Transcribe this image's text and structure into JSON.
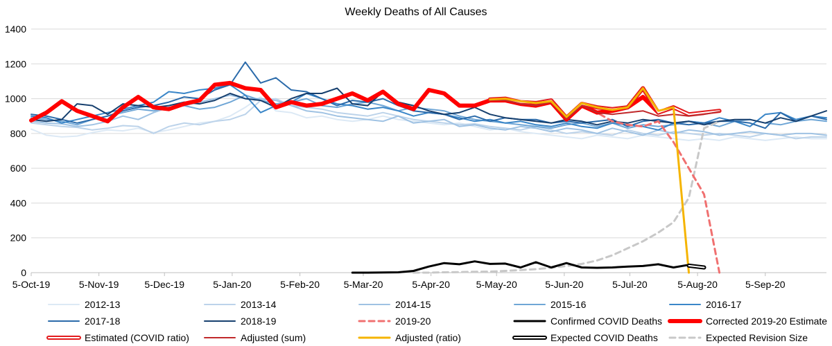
{
  "chart_data": {
    "type": "line",
    "title": "Weekly Deaths of All Causes",
    "xlabel": "",
    "ylabel": "",
    "ylim": [
      0,
      1400
    ],
    "y_ticks": [
      0,
      200,
      400,
      600,
      800,
      1000,
      1200,
      1400
    ],
    "x_unit": "day offset from 5-Oct-19",
    "xlim": [
      0,
      364
    ],
    "x_ticks": [
      {
        "label": "5-Oct-19",
        "day": 0
      },
      {
        "label": "5-Nov-19",
        "day": 31
      },
      {
        "label": "5-Dec-19",
        "day": 61
      },
      {
        "label": "5-Jan-20",
        "day": 92
      },
      {
        "label": "5-Feb-20",
        "day": 123
      },
      {
        "label": "5-Mar-20",
        "day": 152
      },
      {
        "label": "5-Apr-20",
        "day": 183
      },
      {
        "label": "5-May-20",
        "day": 213
      },
      {
        "label": "5-Jun-20",
        "day": 244
      },
      {
        "label": "5-Jul-20",
        "day": 274
      },
      {
        "label": "5-Aug-20",
        "day": 305
      },
      {
        "label": "5-Sep-20",
        "day": 336
      }
    ],
    "grid": true,
    "legend_position": "bottom",
    "week_days": [
      0,
      7,
      14,
      21,
      28,
      35,
      42,
      49,
      56,
      63,
      70,
      77,
      84,
      91,
      98,
      105,
      112,
      119,
      126,
      133,
      140,
      147,
      154,
      161,
      168,
      175,
      182,
      189,
      196,
      203,
      210,
      217,
      224,
      231,
      238,
      245,
      252,
      259,
      266,
      273,
      280,
      287,
      294,
      301,
      308,
      315,
      322,
      329,
      336,
      343,
      350,
      357,
      364
    ],
    "series": [
      {
        "name": "2012-13",
        "color": "#dce9f5",
        "width": 2,
        "dash": "",
        "start_index": 0,
        "values": [
          825,
          790,
          780,
          785,
          805,
          820,
          815,
          830,
          805,
          820,
          840,
          860,
          870,
          900,
          950,
          1010,
          930,
          920,
          890,
          900,
          880,
          870,
          880,
          900,
          880,
          870,
          860,
          850,
          860,
          840,
          820,
          830,
          810,
          800,
          790,
          780,
          770,
          790,
          780,
          770,
          790,
          780,
          770,
          760,
          770,
          760,
          780,
          770,
          760,
          770,
          780,
          770,
          770
        ]
      },
      {
        "name": "2013-14",
        "color": "#bcd3ea",
        "width": 2,
        "dash": "",
        "start_index": 0,
        "values": [
          860,
          850,
          840,
          835,
          820,
          830,
          845,
          840,
          800,
          840,
          860,
          850,
          870,
          880,
          910,
          990,
          1000,
          960,
          950,
          940,
          920,
          910,
          900,
          920,
          900,
          880,
          870,
          860,
          850,
          855,
          840,
          830,
          820,
          840,
          820,
          800,
          810,
          800,
          790,
          820,
          800,
          790,
          810,
          800,
          790,
          800,
          790,
          780,
          800,
          790,
          770,
          780,
          780
        ]
      },
      {
        "name": "2014-15",
        "color": "#9fc2e3",
        "width": 2,
        "dash": "",
        "start_index": 0,
        "values": [
          870,
          860,
          855,
          840,
          850,
          870,
          900,
          880,
          920,
          950,
          960,
          980,
          1000,
          1020,
          1000,
          1000,
          990,
          960,
          930,
          920,
          900,
          890,
          880,
          870,
          900,
          860,
          870,
          880,
          840,
          850,
          830,
          820,
          840,
          830,
          810,
          830,
          820,
          800,
          830,
          810,
          790,
          820,
          800,
          820,
          810,
          790,
          800,
          810,
          800,
          790,
          800,
          800,
          790
        ]
      },
      {
        "name": "2015-16",
        "color": "#6fa6d6",
        "width": 2,
        "dash": "",
        "start_index": 0,
        "values": [
          890,
          880,
          870,
          850,
          880,
          900,
          920,
          940,
          930,
          950,
          960,
          940,
          950,
          980,
          1020,
          990,
          970,
          980,
          1000,
          960,
          950,
          970,
          980,
          960,
          930,
          950,
          940,
          930,
          900,
          880,
          870,
          860,
          850,
          840,
          830,
          850,
          860,
          840,
          860,
          830,
          850,
          840,
          850,
          870,
          860,
          840,
          870,
          880,
          860,
          850,
          870,
          880,
          870
        ]
      },
      {
        "name": "2016-17",
        "color": "#3a86c8",
        "width": 2,
        "dash": "",
        "start_index": 0,
        "values": [
          900,
          890,
          860,
          880,
          900,
          920,
          940,
          960,
          980,
          1040,
          1030,
          1050,
          1060,
          1080,
          1020,
          920,
          960,
          980,
          1030,
          1000,
          970,
          960,
          940,
          950,
          930,
          900,
          920,
          910,
          890,
          870,
          880,
          860,
          870,
          850,
          840,
          860,
          840,
          830,
          860,
          850,
          840,
          820,
          860,
          870,
          860,
          890,
          870,
          840,
          910,
          920,
          880,
          900,
          890
        ]
      },
      {
        "name": "2017-18",
        "color": "#2a6aaa",
        "width": 2,
        "dash": "",
        "start_index": 0,
        "values": [
          910,
          900,
          880,
          860,
          880,
          900,
          930,
          950,
          960,
          980,
          1010,
          1000,
          1050,
          1080,
          1210,
          1090,
          1120,
          1050,
          1040,
          1000,
          960,
          990,
          980,
          1000,
          960,
          930,
          920,
          910,
          880,
          900,
          870,
          890,
          880,
          880,
          860,
          870,
          860,
          870,
          880,
          840,
          870,
          880,
          860,
          850,
          860,
          870,
          870,
          860,
          830,
          920,
          870,
          900,
          880
        ]
      },
      {
        "name": "2018-19",
        "color": "#163f6e",
        "width": 2,
        "dash": "",
        "start_index": 0,
        "values": [
          880,
          870,
          880,
          970,
          960,
          910,
          970,
          960,
          950,
          960,
          980,
          970,
          990,
          1030,
          1000,
          990,
          950,
          1000,
          1030,
          1030,
          1060,
          970,
          960,
          1040,
          980,
          960,
          930,
          910,
          920,
          950,
          910,
          890,
          880,
          870,
          860,
          880,
          870,
          850,
          870,
          860,
          880,
          870,
          860,
          870,
          850,
          870,
          880,
          880,
          860,
          890,
          870,
          900,
          930
        ]
      },
      {
        "name": "2019-20",
        "color": "#f07070",
        "width": 3,
        "dash": "8,6",
        "start_index": 0,
        "values": [
          875,
          920,
          985,
          930,
          900,
          870,
          950,
          1010,
          950,
          940,
          970,
          990,
          1080,
          1090,
          1060,
          1050,
          950,
          980,
          960,
          970,
          1000,
          1030,
          990,
          1040,
          970,
          940,
          1050,
          1030,
          960,
          960,
          990,
          990,
          970,
          960,
          980,
          880,
          960,
          920,
          870,
          850,
          840,
          870,
          750,
          600,
          450,
          0
        ]
      },
      {
        "name": "Confirmed COVID Deaths",
        "color": "#000000",
        "width": 3,
        "dash": "",
        "start_index": 21,
        "values": [
          0,
          0,
          1,
          2,
          10,
          35,
          55,
          48,
          65,
          50,
          52,
          30,
          60,
          30,
          55,
          30,
          28,
          30,
          35,
          38,
          48,
          30,
          45
        ]
      },
      {
        "name": "Corrected 2019-20 Estimate",
        "color": "#ff0000",
        "width": 6,
        "dash": "",
        "start_index": 0,
        "values": [
          875,
          920,
          985,
          930,
          900,
          870,
          950,
          1010,
          950,
          940,
          970,
          990,
          1080,
          1090,
          1060,
          1050,
          950,
          980,
          960,
          970,
          1000,
          1030,
          990,
          1040,
          970,
          940,
          1050,
          1030,
          960,
          960,
          990,
          990,
          970,
          960,
          980,
          880,
          960,
          920,
          930,
          950,
          1010,
          920,
          950
        ]
      },
      {
        "name": "Estimated (COVID ratio)",
        "color": "#e31a1c",
        "width": 4,
        "dash": "",
        "outline": true,
        "start_index": 30,
        "values": [
          995,
          1000,
          980,
          975,
          990,
          890,
          970,
          950,
          940,
          950,
          1060,
          920,
          950,
          910,
          920,
          930
        ]
      },
      {
        "name": "Adjusted (sum)",
        "color": "#c0282a",
        "width": 2,
        "dash": "",
        "start_index": 30,
        "values": [
          990,
          990,
          970,
          960,
          980,
          885,
          960,
          920,
          910,
          920,
          930,
          900,
          910,
          900,
          910,
          925
        ]
      },
      {
        "name": "Adjusted (ratio)",
        "color": "#f5b400",
        "width": 3,
        "dash": "",
        "start_index": 30,
        "values": [
          995,
          1000,
          985,
          975,
          985,
          895,
          975,
          950,
          935,
          950,
          1060,
          930,
          950,
          0
        ]
      },
      {
        "name": "Expected COVID Deaths",
        "color": "#000000",
        "width": 4,
        "dash": "",
        "outline": true,
        "start_index": 43,
        "values": [
          40,
          30
        ]
      },
      {
        "name": "Expected Revision Size",
        "color": "#c8c8c8",
        "width": 3,
        "dash": "8,6",
        "start_index": 25,
        "values": [
          0,
          0,
          2,
          3,
          5,
          6,
          10,
          15,
          20,
          28,
          38,
          50,
          70,
          100,
          140,
          180,
          230,
          290,
          430,
          830,
          870
        ]
      }
    ],
    "legend_rows": [
      [
        "2012-13",
        "2013-14",
        "2014-15",
        "2015-16",
        "2016-17"
      ],
      [
        "2017-18",
        "2018-19",
        "2019-20",
        "Confirmed COVID Deaths",
        "Corrected 2019-20 Estimate"
      ],
      [
        "Estimated (COVID ratio)",
        "Adjusted (sum)",
        "Adjusted (ratio)",
        "Expected COVID Deaths",
        "Expected Revision Size"
      ]
    ]
  }
}
